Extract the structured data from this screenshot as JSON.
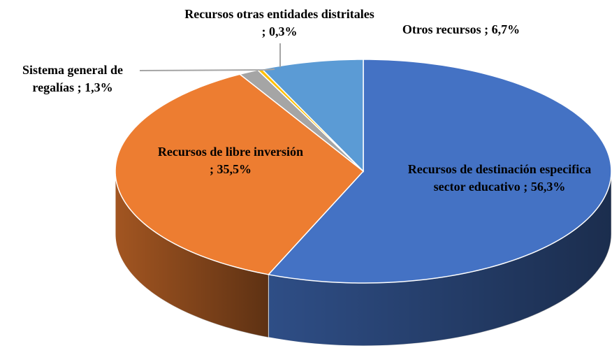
{
  "chart_data": {
    "type": "pie3d",
    "categories": [
      "Recursos de destinación especifica sector educativo ;",
      "Recursos de libre inversión ;",
      "Sistema general de regalías ;",
      "Recursos otras entidades distritales ;",
      "Otros recursos ;"
    ],
    "values": [
      56.3,
      35.5,
      1.3,
      0.3,
      6.7
    ],
    "value_labels": [
      "56,3%",
      "35,5%",
      "1,3%",
      "0,3%",
      "6,7%"
    ],
    "colors": [
      "#4472c4",
      "#ed7d31",
      "#a5a5a5",
      "#ffc000",
      "#5b9bd5"
    ]
  }
}
